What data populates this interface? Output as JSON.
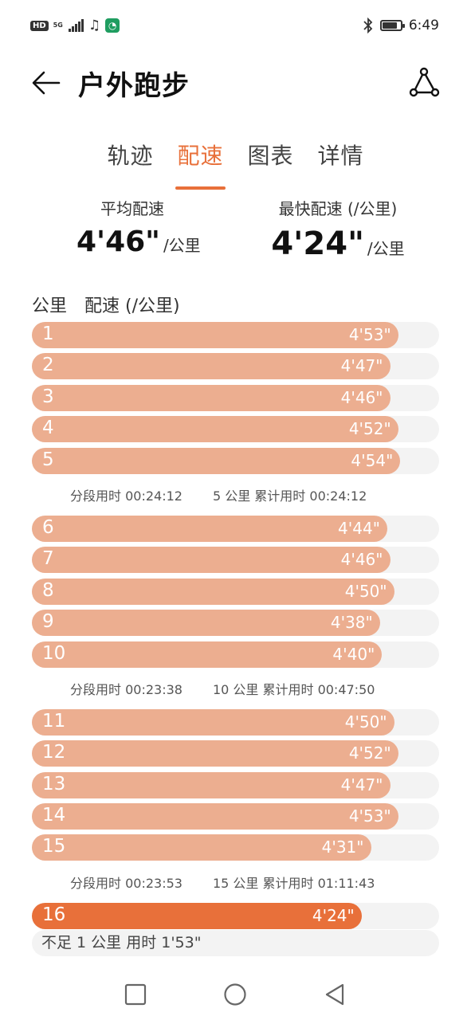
{
  "status_bar": {
    "hd": "HD",
    "network": "5G",
    "time": "6:49",
    "battery_level": 0.85,
    "icons": [
      "hd-icon",
      "signal-icon",
      "music-icon",
      "app-notification-icon",
      "bluetooth-icon",
      "battery-icon"
    ]
  },
  "header": {
    "title": "户外跑步",
    "back_icon": "back-arrow-icon",
    "share_icon": "route-share-icon"
  },
  "tabs": [
    {
      "label": "轨迹",
      "active": false
    },
    {
      "label": "配速",
      "active": true
    },
    {
      "label": "图表",
      "active": false
    },
    {
      "label": "详情",
      "active": false
    }
  ],
  "stats": {
    "avg": {
      "label": "平均配速",
      "value": "4'46\"",
      "unit": "/公里"
    },
    "fastest": {
      "label": "最快配速 (/公里)",
      "value": "4'24\"",
      "unit": "/公里"
    }
  },
  "list_header": {
    "km": "公里",
    "pace": "配速 (/公里)"
  },
  "accent": "#e8703a",
  "bar_color": "#ecae90",
  "groups": [
    {
      "rows": [
        {
          "km": "1",
          "pace": "4'53\"",
          "fill": 0.9
        },
        {
          "km": "2",
          "pace": "4'47\"",
          "fill": 0.88
        },
        {
          "km": "3",
          "pace": "4'46\"",
          "fill": 0.88
        },
        {
          "km": "4",
          "pace": "4'52\"",
          "fill": 0.9
        },
        {
          "km": "5",
          "pace": "4'54\"",
          "fill": 0.905
        }
      ],
      "split": {
        "segment": "分段用时 00:24:12",
        "cumulative": "5 公里 累计用时 00:24:12"
      }
    },
    {
      "rows": [
        {
          "km": "6",
          "pace": "4'44\"",
          "fill": 0.873
        },
        {
          "km": "7",
          "pace": "4'46\"",
          "fill": 0.88
        },
        {
          "km": "8",
          "pace": "4'50\"",
          "fill": 0.89
        },
        {
          "km": "9",
          "pace": "4'38\"",
          "fill": 0.855
        },
        {
          "km": "10",
          "pace": "4'40\"",
          "fill": 0.86
        }
      ],
      "split": {
        "segment": "分段用时 00:23:38",
        "cumulative": "10 公里 累计用时 00:47:50"
      }
    },
    {
      "rows": [
        {
          "km": "11",
          "pace": "4'50\"",
          "fill": 0.89
        },
        {
          "km": "12",
          "pace": "4'52\"",
          "fill": 0.9
        },
        {
          "km": "13",
          "pace": "4'47\"",
          "fill": 0.88
        },
        {
          "km": "14",
          "pace": "4'53\"",
          "fill": 0.9
        },
        {
          "km": "15",
          "pace": "4'31\"",
          "fill": 0.833
        }
      ],
      "split": {
        "segment": "分段用时 00:23:53",
        "cumulative": "15 公里 累计用时 01:11:43"
      }
    },
    {
      "rows": [
        {
          "km": "16",
          "pace": "4'24\"",
          "fill": 0.81,
          "fastest": true
        }
      ]
    }
  ],
  "remaining": "不足 1 公里 用时 1'53\"",
  "nav": {
    "icons": [
      "recent-apps-icon",
      "home-icon",
      "back-icon"
    ]
  }
}
